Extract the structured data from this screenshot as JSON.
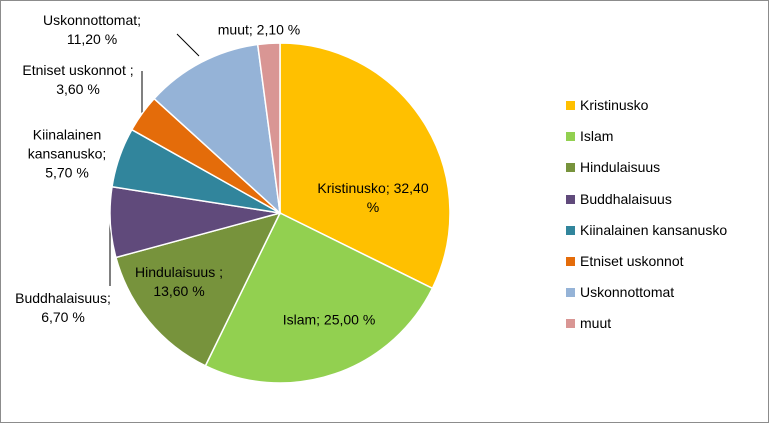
{
  "chart_data": {
    "type": "pie",
    "categories": [
      "Kristinusko",
      "Islam",
      "Hindulaisuus",
      "Buddhalaisuus",
      "Kiinalainen kansanusko",
      "Etniset uskonnot",
      "Uskonnottomat",
      "muut"
    ],
    "values": [
      32.4,
      25.0,
      13.6,
      6.7,
      5.7,
      3.6,
      11.2,
      2.1
    ],
    "value_labels": [
      "Kristinusko; 32,40\n%",
      "Islam; 25,00 %",
      "Hindulaisuus ;\n13,60 %",
      "Buddhalaisuus;\n6,70 %",
      "Kiinalainen\nkansanusko;\n5,70 %",
      "Etniset uskonnot ;\n3,60 %",
      "Uskonnottomat;\n11,20 %",
      "muut; 2,10 %"
    ],
    "colors": [
      "#FFC000",
      "#92D050",
      "#77933C",
      "#604A7B",
      "#31859C",
      "#E46C0A",
      "#95B3D7",
      "#D99694"
    ],
    "legend": "right"
  }
}
